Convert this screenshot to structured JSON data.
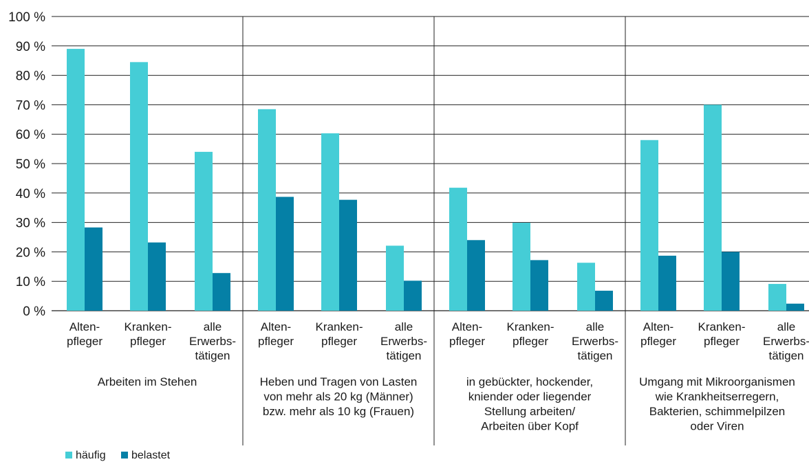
{
  "chart_data": {
    "type": "bar",
    "ylim": [
      0,
      100
    ],
    "y_ticks": [
      "0 %",
      "10 %",
      "20 %",
      "30 %",
      "40 %",
      "50 %",
      "60 %",
      "70 %",
      "80 %",
      "90 %",
      "100 %"
    ],
    "grid": true,
    "legend_position": "bottom-left",
    "colors": {
      "haeufig": "#45cdd6",
      "belastet": "#0580a6"
    },
    "series": [
      {
        "name": "häufig"
      },
      {
        "name": "belastet"
      }
    ],
    "groups": [
      {
        "label": [
          "Arbeiten im Stehen"
        ],
        "categories": [
          {
            "label": [
              "Alten-",
              "pfleger"
            ],
            "values": [
              89,
              28.3
            ]
          },
          {
            "label": [
              "Kranken-",
              "pfleger"
            ],
            "values": [
              84.5,
              23.2
            ]
          },
          {
            "label": [
              "alle",
              "Erwerbs-",
              "tätigen"
            ],
            "values": [
              54,
              12.8
            ]
          }
        ]
      },
      {
        "label": [
          "Heben und Tragen von Lasten",
          "von mehr als 20 kg (Männer)",
          "bzw. mehr als 10 kg (Frauen)"
        ],
        "categories": [
          {
            "label": [
              "Alten-",
              "pfleger"
            ],
            "values": [
              68.5,
              38.7
            ]
          },
          {
            "label": [
              "Kranken-",
              "pfleger"
            ],
            "values": [
              60.3,
              37.7
            ]
          },
          {
            "label": [
              "alle",
              "Erwerbs-",
              "tätigen"
            ],
            "values": [
              22.1,
              10.2
            ]
          }
        ]
      },
      {
        "label": [
          "in gebückter, hockender,",
          "kniender oder liegender",
          "Stellung arbeiten/",
          "Arbeiten über Kopf"
        ],
        "categories": [
          {
            "label": [
              "Alten-",
              "pfleger"
            ],
            "values": [
              41.8,
              24
            ]
          },
          {
            "label": [
              "Kranken-",
              "pfleger"
            ],
            "values": [
              29.9,
              17.2
            ]
          },
          {
            "label": [
              "alle",
              "Erwerbs-",
              "tätigen"
            ],
            "values": [
              16.3,
              6.8
            ]
          }
        ]
      },
      {
        "label": [
          "Umgang mit Mikroorganismen",
          "wie Krankheitserregern,",
          "Bakterien, schimmelpilzen",
          "oder Viren"
        ],
        "categories": [
          {
            "label": [
              "Alten-",
              "pfleger"
            ],
            "values": [
              58,
              18.7
            ]
          },
          {
            "label": [
              "Kranken-",
              "pfleger"
            ],
            "values": [
              70,
              20
            ]
          },
          {
            "label": [
              "alle",
              "Erwerbs-",
              "tätigen"
            ],
            "values": [
              9.1,
              2.4
            ]
          }
        ]
      }
    ]
  }
}
